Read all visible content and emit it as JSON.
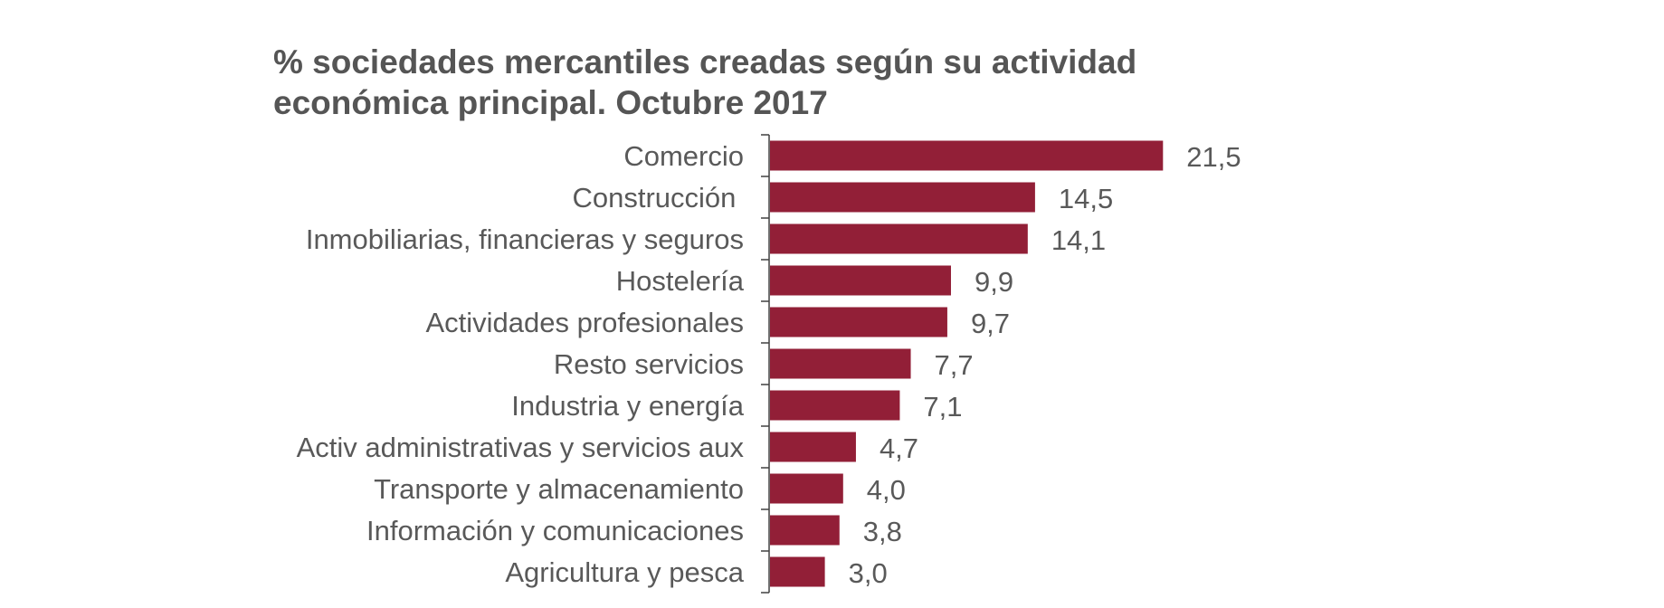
{
  "chart_data": {
    "type": "bar",
    "orientation": "horizontal",
    "title": "% sociedades mercantiles creadas según su actividad económica principal. Octubre 2017",
    "title_lines": [
      "% sociedades mercantiles creadas según su actividad",
      "económica principal. Octubre 2017"
    ],
    "xlabel": "",
    "ylabel": "",
    "xlim": [
      0,
      21.5
    ],
    "grid": false,
    "legend": "none",
    "categories": [
      "Comercio",
      "Construcción ",
      "Inmobiliarias, financieras y seguros",
      "Hostelería",
      "Actividades profesionales",
      "Resto servicios",
      "Industria y energía",
      "Activ administrativas y servicios aux",
      "Transporte y almacenamiento",
      "Información y comunicaciones",
      "Agricultura y pesca"
    ],
    "values": [
      21.5,
      14.5,
      14.1,
      9.9,
      9.7,
      7.7,
      7.1,
      4.7,
      4.0,
      3.8,
      3.0
    ],
    "value_labels": [
      "21,5",
      "14,5",
      "14,1",
      "9,9",
      "9,7",
      "7,7",
      "7,1",
      "4,7",
      "4,0",
      "3,8",
      "3,0"
    ],
    "colors": {
      "bar": "#921F37",
      "text": "#595959",
      "title": "#555555",
      "axis": "#404040"
    }
  }
}
